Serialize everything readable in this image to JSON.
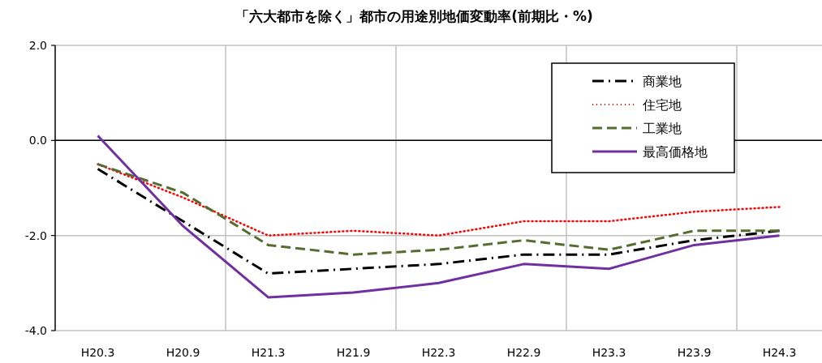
{
  "chart_data": {
    "type": "line",
    "title": "「六大都市を除く」都市の用途別地価変動率(前期比・%)",
    "categories": [
      "H20.3",
      "H20.9",
      "H21.3",
      "H21.9",
      "H22.3",
      "H22.9",
      "H23.3",
      "H23.9",
      "H24.3"
    ],
    "ylim": [
      -4,
      2
    ],
    "yticks": [
      {
        "value": -4,
        "label": "-4.0"
      },
      {
        "value": -2,
        "label": "-2.0"
      },
      {
        "value": 0,
        "label": "0.0"
      },
      {
        "value": 2,
        "label": "2.0"
      }
    ],
    "grid": true,
    "legend": "top right",
    "series": [
      {
        "name": "商業地",
        "color": "#000000",
        "line_style": "dashdot",
        "values": [
          -0.6,
          -1.7,
          -2.8,
          -2.7,
          -2.6,
          -2.4,
          -2.4,
          -2.1,
          -1.9
        ]
      },
      {
        "name": "住宅地",
        "color": "#ff0000",
        "line_style": "dotted",
        "values": [
          -0.5,
          -1.2,
          -2.0,
          -1.9,
          -2.0,
          -1.7,
          -1.7,
          -1.5,
          -1.4
        ]
      },
      {
        "name": "工業地",
        "color": "#556b2f",
        "line_style": "dashed",
        "values": [
          -0.5,
          -1.1,
          -2.2,
          -2.4,
          -2.3,
          -2.1,
          -2.3,
          -1.9,
          -1.9
        ]
      },
      {
        "name": "最高価格地",
        "color": "#7030a0",
        "line_style": "solid",
        "values": [
          0.1,
          -1.8,
          -3.3,
          -3.2,
          -3.0,
          -2.6,
          -2.7,
          -2.2,
          -2.0
        ]
      }
    ]
  }
}
